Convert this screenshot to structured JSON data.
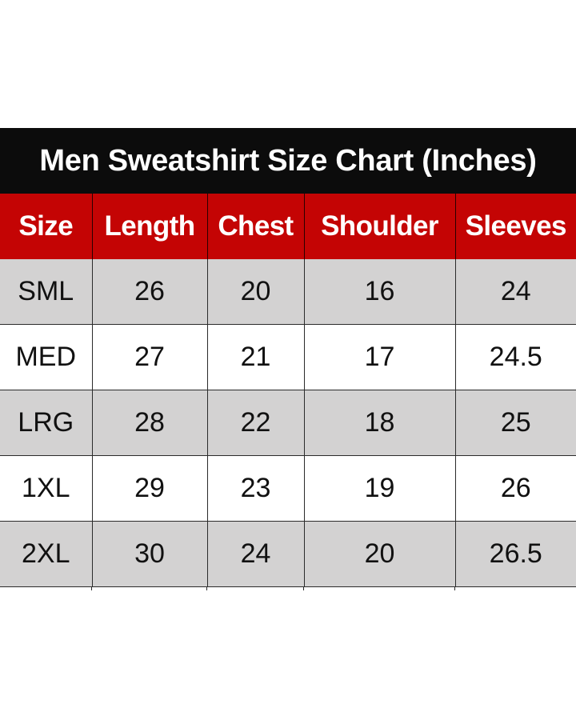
{
  "title": "Men Sweatshirt Size Chart (Inches)",
  "colors": {
    "title_bg": "#0c0c0c",
    "header_bg": "#c40404",
    "row_shaded": "#d3d2d2",
    "row_plain": "#ffffff"
  },
  "headers": [
    "Size",
    "Length",
    "Chest",
    "Shoulder",
    "Sleeves"
  ],
  "rows": [
    [
      "SML",
      "26",
      "20",
      "16",
      "24"
    ],
    [
      "MED",
      "27",
      "21",
      "17",
      "24.5"
    ],
    [
      "LRG",
      "28",
      "22",
      "18",
      "25"
    ],
    [
      "1XL",
      "29",
      "23",
      "19",
      "26"
    ],
    [
      "2XL",
      "30",
      "24",
      "20",
      "26.5"
    ]
  ]
}
